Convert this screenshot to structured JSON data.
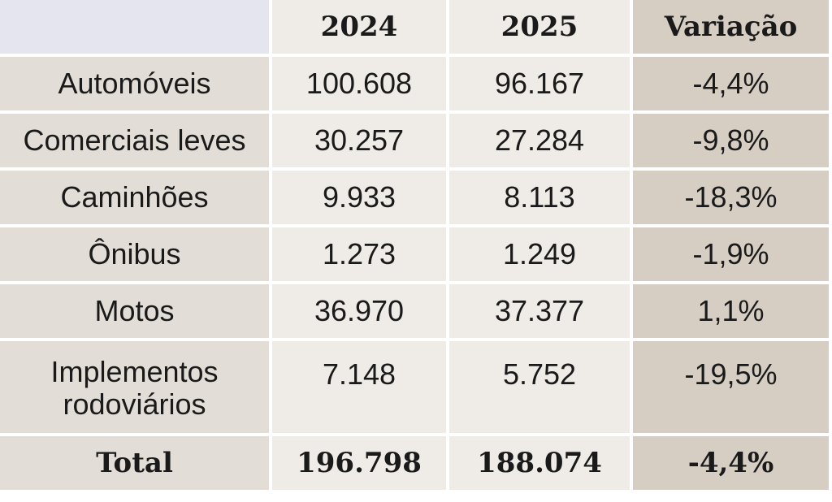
{
  "chart_data": {
    "type": "table",
    "columns": [
      "",
      "2024",
      "2025",
      "Variação"
    ],
    "rows": [
      {
        "label": "Automóveis",
        "y2024": "100.608",
        "y2025": "96.167",
        "variation": "-4,4%"
      },
      {
        "label": "Comerciais leves",
        "y2024": "30.257",
        "y2025": "27.284",
        "variation": "-9,8%"
      },
      {
        "label": "Caminhões",
        "y2024": "9.933",
        "y2025": "8.113",
        "variation": "-18,3%"
      },
      {
        "label": "Ônibus",
        "y2024": "1.273",
        "y2025": "1.249",
        "variation": "-1,9%"
      },
      {
        "label": "Motos",
        "y2024": "36.970",
        "y2025": "37.377",
        "variation": "1,1%"
      },
      {
        "label_line1": "Implementos",
        "label_line2": "rodoviários",
        "y2024": "7.148",
        "y2025": "5.752",
        "variation": "-19,5%"
      }
    ],
    "total": {
      "label": "Total",
      "y2024": "196.798",
      "y2025": "188.074",
      "variation": "-4,4%"
    }
  },
  "colors": {
    "label_bg": "#e2ddd6",
    "number_bg": "#efebe6",
    "variation_bg": "#d6cdc3",
    "corner_bg": "#e4e5ee"
  }
}
